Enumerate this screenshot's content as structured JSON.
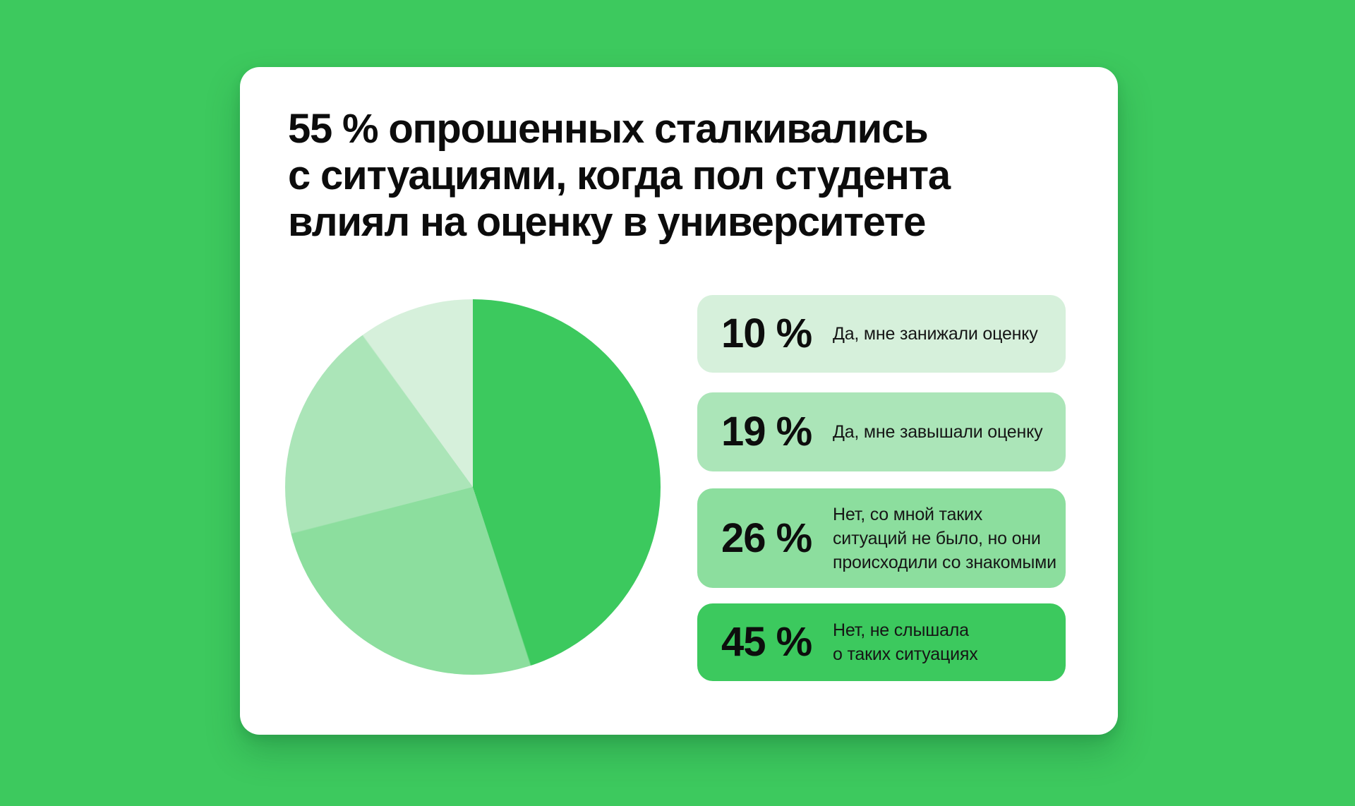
{
  "page": {
    "background_color": "#3DC95E",
    "card_color": "#FFFFFF",
    "text_color": "#0C0C0C"
  },
  "title": {
    "text": "55 % опрошенных сталкивались\nс ситуациями, когда пол студента\nвлиял на оценку в университете"
  },
  "chart_data": {
    "type": "pie",
    "title": "55 % опрошенных сталкивались с ситуациями, когда пол студента влиял на оценку в университете",
    "units": "%",
    "start_angle_deg": 0,
    "direction": "clockwise",
    "legend_position": "right",
    "slices": [
      {
        "label": "Нет, не слышала о таких ситуациях",
        "value": 45,
        "color": "#3CC95E"
      },
      {
        "label": "Нет, со мной таких ситуаций не было, но они происходили со знакомыми",
        "value": 26,
        "color": "#8CDE9E"
      },
      {
        "label": "Да, мне завышали оценку",
        "value": 19,
        "color": "#ABE5B8"
      },
      {
        "label": "Да, мне занижали оценку",
        "value": 10,
        "color": "#D6F0DB"
      }
    ]
  },
  "legend": {
    "items": [
      {
        "percent": "10 %",
        "label": "Да, мне занижали оценку",
        "color": "#D6F0DB"
      },
      {
        "percent": "19 %",
        "label": "Да, мне завышали оценку",
        "color": "#ABE5B8"
      },
      {
        "percent": "26 %",
        "label": "Нет, со мной таких\nситуаций не было, но они\nпроисходили со знакомыми",
        "color": "#8CDE9E"
      },
      {
        "percent": "45 %",
        "label": "Нет, не слышала\nо таких ситуациях",
        "color": "#3CC95E"
      }
    ]
  }
}
